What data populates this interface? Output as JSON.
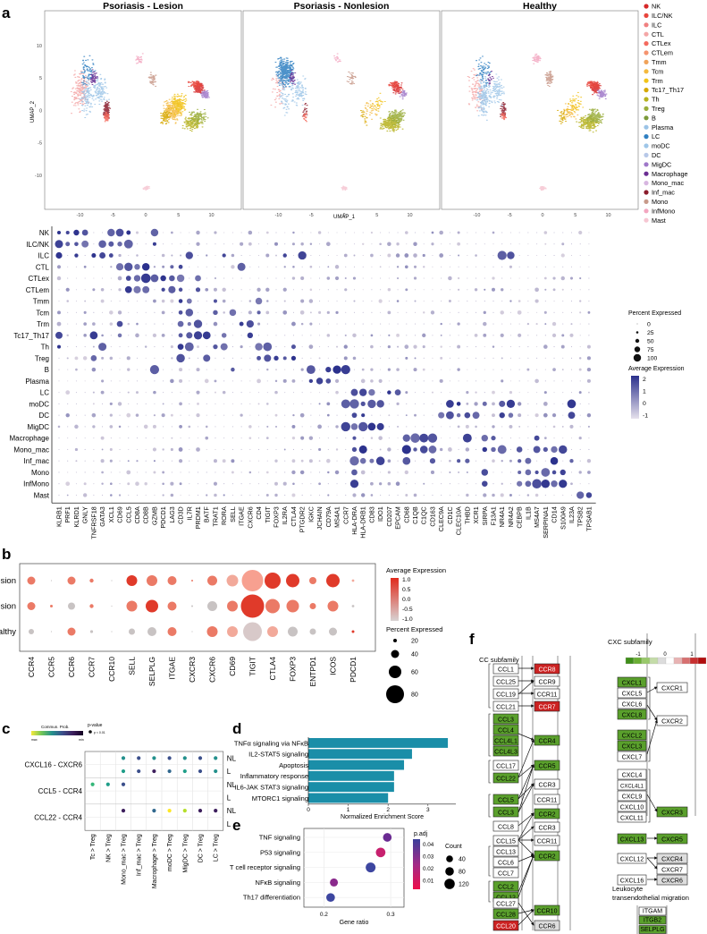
{
  "panel_labels": {
    "a": "a",
    "b": "b",
    "c": "c",
    "d": "d",
    "e": "e",
    "f": "f"
  },
  "panel_a": {
    "umap_titles": [
      "Psoriasis - Lesion",
      "Psoriasis - Nonlesion",
      "Healthy"
    ],
    "y_axis_label": "UMAP_2",
    "x_axis_label": "UMAP_1",
    "y_ticks": [
      "10",
      "5",
      "0",
      "-5",
      "-10"
    ],
    "x_ticks": [
      "-10",
      "-5",
      "0",
      "5",
      "10"
    ],
    "legend": [
      {
        "name": "NK",
        "color": "#d62728"
      },
      {
        "name": "ILC/NK",
        "color": "#e8453c"
      },
      {
        "name": "ILC",
        "color": "#f08080"
      },
      {
        "name": "CTL",
        "color": "#f4a6a6"
      },
      {
        "name": "CTLex",
        "color": "#f46a5e"
      },
      {
        "name": "CTLem",
        "color": "#f5946f"
      },
      {
        "name": "Tmm",
        "color": "#f0a35a"
      },
      {
        "name": "Tcm",
        "color": "#f4b93e"
      },
      {
        "name": "Trm",
        "color": "#f2c318"
      },
      {
        "name": "Tc17_Th17",
        "color": "#d6a800"
      },
      {
        "name": "Th",
        "color": "#b7b21e"
      },
      {
        "name": "Treg",
        "color": "#9aad3c"
      },
      {
        "name": "B",
        "color": "#7b9a3a"
      },
      {
        "name": "Plasma",
        "color": "#9bc3e6"
      },
      {
        "name": "LC",
        "color": "#2f7fc1"
      },
      {
        "name": "moDC",
        "color": "#9ec6e8"
      },
      {
        "name": "DC",
        "color": "#b7c8e8"
      },
      {
        "name": "MigDC",
        "color": "#9f78c9"
      },
      {
        "name": "Macrophage",
        "color": "#6a2d92"
      },
      {
        "name": "Mono_mac",
        "color": "#d7b6e0"
      },
      {
        "name": "Inf_mac",
        "color": "#8b1c2c"
      },
      {
        "name": "Mono",
        "color": "#c89a8a"
      },
      {
        "name": "InfMono",
        "color": "#f3a6c0"
      },
      {
        "name": "Mast",
        "color": "#f6c6d2"
      }
    ]
  },
  "dotplot_a": {
    "rows": [
      "NK",
      "ILC/NK",
      "ILC",
      "CTL",
      "CTLex",
      "CTLem",
      "Tmm",
      "Tcm",
      "Trm",
      "Tc17_Th17",
      "Th",
      "Treg",
      "B",
      "Plasma",
      "LC",
      "moDC",
      "DC",
      "MigDC",
      "Macrophage",
      "Mono_mac",
      "Inf_mac",
      "Mono",
      "InfMono",
      "Mast"
    ],
    "genes": [
      "KLRB1",
      "PRF1",
      "KLRD1",
      "GNLY",
      "TNFRSF18",
      "GATA3",
      "XCL1",
      "CD69",
      "CCL5",
      "CD8A",
      "CD8B",
      "GZMB",
      "PDCD1",
      "LAG3",
      "CD3D",
      "IL7R",
      "PRDM1",
      "BATF",
      "TRAT1",
      "RORA",
      "SELL",
      "ITGAE",
      "CXCR6",
      "CD4",
      "TIGIT",
      "FOXP3",
      "IL2RA",
      "CTLA4",
      "PTGDR2",
      "IGKC",
      "JCHAIN",
      "CD79A",
      "MS4A1",
      "CCR7",
      "HLA-DRA",
      "HLA-DRB1",
      "CD83",
      "IDO1",
      "CD207",
      "EPCAM",
      "CD68",
      "C1QB",
      "C1QC",
      "CD163",
      "CLEC9A",
      "CD1C",
      "CLEC10A",
      "THBD",
      "XCR1",
      "SIRPA",
      "F13A1",
      "NR4A1",
      "NR4A2",
      "CEBPB",
      "IL1B",
      "MS4A7",
      "SERPINA1",
      "CD14",
      "S100A9",
      "IL23A",
      "TPSB2",
      "TPSAB1"
    ],
    "legend_pct_title": "Percent Expressed",
    "legend_pct_values": [
      "0",
      "25",
      "50",
      "75",
      "100"
    ],
    "legend_avg_title": "Average Expression",
    "legend_avg_ticks": [
      "2",
      "1",
      "0",
      "-1"
    ]
  },
  "panel_b": {
    "rows": [
      "Lesion",
      "Nonlesion",
      "Healthy"
    ],
    "genes": [
      "CCR4",
      "CCR5",
      "CCR6",
      "CCR7",
      "CCR10",
      "SELL",
      "SELPLG",
      "ITGAE",
      "CXCR3",
      "CXCR6",
      "CD69",
      "TIGIT",
      "CTLA4",
      "FOXP3",
      "ENTPD1",
      "ICOS",
      "PDCD1"
    ],
    "legend_avg_title": "Average Expression",
    "legend_avg_ticks": [
      "1.0",
      "0.5",
      "0.0",
      "-0.5",
      "-1.0"
    ],
    "legend_pct_title": "Percent Expressed",
    "legend_pct_values": [
      "20",
      "40",
      "60",
      "80"
    ]
  },
  "panel_c": {
    "legend_title": "Commun. Prob.",
    "legend_max": "max",
    "legend_min": "min",
    "legend_pvalue": "p-value",
    "legend_pvalue_note": "p < 0.01",
    "pair_labels": [
      "CXCL16 - CXCR6",
      "CCL5 - CCR4",
      "CCL22 - CCR4"
    ],
    "row_labels": [
      "NL",
      "L",
      "NL",
      "L",
      "NL",
      "L"
    ],
    "columns": [
      "Tc > Treg",
      "NK > Treg",
      "Mono_mac > Treg",
      "Inf_mac > Treg",
      "Macrophage > Treg",
      "moDC > Treg",
      "MigDC > Treg",
      "DC > Treg",
      "LC > Treg"
    ]
  },
  "chart_data": [
    {
      "type": "bar",
      "panel": "d",
      "orientation": "horizontal",
      "categories": [
        "TNFα signaling via NFκB",
        "IL2-STAT5 signaling",
        "Apoptosis",
        "Inflammatory response",
        "IL6-JAK STAT3 signaling",
        "MTORC1 signaling"
      ],
      "values": [
        3.5,
        2.6,
        2.4,
        2.15,
        2.15,
        2.0
      ],
      "xlabel": "Normalized Enrichment Score",
      "xticks": [
        "0",
        "1",
        "2",
        "3"
      ],
      "xlim": [
        0,
        3.7
      ],
      "color": "#1a8ea8"
    },
    {
      "type": "scatter",
      "panel": "e",
      "categories": [
        "TNF signaling",
        "P53 signaling",
        "T cell receptor signaling",
        "NFκB signaling",
        "Th17 differentiation"
      ],
      "gene_ratio": [
        0.295,
        0.285,
        0.27,
        0.215,
        0.21
      ],
      "count": [
        70,
        85,
        90,
        60,
        70
      ],
      "p_adj": [
        0.04,
        0.03,
        0.02,
        0.01,
        0.005
      ],
      "xlabel": "Gene ratio",
      "xticks": [
        "0.2",
        "0.3"
      ],
      "xlim": [
        0.17,
        0.32
      ],
      "legend_color_title": "p.adj",
      "legend_color_ticks": [
        "0.04",
        "0.03",
        "0.02",
        "0.01"
      ],
      "legend_size_title": "Count",
      "legend_size_values": [
        "40",
        "80",
        "120"
      ]
    }
  ],
  "panel_f": {
    "cc_title": "CC subfamily",
    "cxc_title": "CXC subfamily",
    "scale_ticks": [
      "-1",
      "0",
      "1"
    ],
    "cc_ligands": [
      {
        "name": "CCL1",
        "fill": "#ffffff"
      },
      {
        "name": "CCL25",
        "fill": "#ffffff"
      },
      {
        "name": "CCL19",
        "fill": "#ffffff"
      },
      {
        "name": "CCL21",
        "fill": "#ffffff"
      },
      {
        "name": "CCL3",
        "fill": "#5aa02c"
      },
      {
        "name": "CCL4",
        "fill": "#5aa02c"
      },
      {
        "name": "CCL4L1",
        "fill": "#5aa02c"
      },
      {
        "name": "CCL4L3",
        "fill": "#5aa02c"
      },
      {
        "name": "CCL17",
        "fill": "#ffffff"
      },
      {
        "name": "CCL22",
        "fill": "#5aa02c"
      },
      {
        "name": "CCL5",
        "fill": "#5aa02c"
      },
      {
        "name": "CCL3",
        "fill": "#5aa02c"
      },
      {
        "name": "CCL8",
        "fill": "#ffffff"
      },
      {
        "name": "CCL15",
        "fill": "#ffffff"
      },
      {
        "name": "CCL13",
        "fill": "#ffffff"
      },
      {
        "name": "CCL6",
        "fill": "#ffffff"
      },
      {
        "name": "CCL7",
        "fill": "#ffffff"
      },
      {
        "name": "CCL2",
        "fill": "#5aa02c"
      },
      {
        "name": "CCL12",
        "fill": "#5aa02c"
      },
      {
        "name": "CCL27",
        "fill": "#ffffff"
      },
      {
        "name": "CCL28",
        "fill": "#5aa02c"
      },
      {
        "name": "CCL20",
        "fill": "#cc2222"
      }
    ],
    "cc_receptors": [
      {
        "name": "CCR8",
        "fill": "#cc2222"
      },
      {
        "name": "CCR9",
        "fill": "#ffffff"
      },
      {
        "name": "CCR11",
        "fill": "#ffffff"
      },
      {
        "name": "CCR7",
        "fill": "#cc2222"
      },
      {
        "name": "CCR4",
        "fill": "#5aa02c"
      },
      {
        "name": "CCR5",
        "fill": "#5aa02c"
      },
      {
        "name": "CCR3",
        "fill": "#ffffff"
      },
      {
        "name": "CCR11",
        "fill": "#ffffff"
      },
      {
        "name": "CCR2",
        "fill": "#5aa02c"
      },
      {
        "name": "CCR3",
        "fill": "#ffffff"
      },
      {
        "name": "CCR11",
        "fill": "#ffffff"
      },
      {
        "name": "CCR2",
        "fill": "#5aa02c"
      },
      {
        "name": "CCR10",
        "fill": "#5aa02c"
      },
      {
        "name": "CCR6",
        "fill": "#dddddd"
      }
    ],
    "cxc_ligands": [
      {
        "name": "CXCL1",
        "fill": "#5aa02c"
      },
      {
        "name": "CXCL5",
        "fill": "#ffffff"
      },
      {
        "name": "CXCL6",
        "fill": "#ffffff"
      },
      {
        "name": "CXCL8",
        "fill": "#5aa02c"
      },
      {
        "name": "CXCL2",
        "fill": "#5aa02c"
      },
      {
        "name": "CXCL3",
        "fill": "#5aa02c"
      },
      {
        "name": "CXCL7",
        "fill": "#ffffff"
      },
      {
        "name": "CXCL4",
        "fill": "#ffffff"
      },
      {
        "name": "CXCL4L1",
        "fill": "#ffffff"
      },
      {
        "name": "CXCL9",
        "fill": "#ffffff"
      },
      {
        "name": "CXCL10",
        "fill": "#ffffff"
      },
      {
        "name": "CXCL11",
        "fill": "#ffffff"
      },
      {
        "name": "CXCL13",
        "fill": "#5aa02c"
      },
      {
        "name": "CXCL12",
        "fill": "#ffffff"
      },
      {
        "name": "CXCL16",
        "fill": "#ffffff"
      }
    ],
    "cxc_receptors": [
      {
        "name": "CXCR1",
        "fill": "#ffffff"
      },
      {
        "name": "CXCR2",
        "fill": "#ffffff"
      },
      {
        "name": "CXCR3",
        "fill": "#5aa02c"
      },
      {
        "name": "CXCR5",
        "fill": "#5aa02c"
      },
      {
        "name": "CXCR4",
        "fill": "#dddddd"
      },
      {
        "name": "CXCR7",
        "fill": "#ffffff"
      },
      {
        "name": "CXCR6",
        "fill": "#dddddd"
      }
    ],
    "leuk_title_1": "Leukocyte",
    "leuk_title_2": "transendothelial migration",
    "leuk_items": [
      {
        "name": "ITGAM",
        "fill": "#ffffff"
      },
      {
        "name": "ITGB2",
        "fill": "#5aa02c"
      },
      {
        "name": "SELPLG",
        "fill": "#5aa02c"
      },
      {
        "name": "CD40",
        "fill": "#dddddd"
      },
      {
        "name": "ITGAL",
        "fill": "#5aa02c"
      },
      {
        "name": "ITGB2",
        "fill": "#5aa02c"
      }
    ]
  }
}
